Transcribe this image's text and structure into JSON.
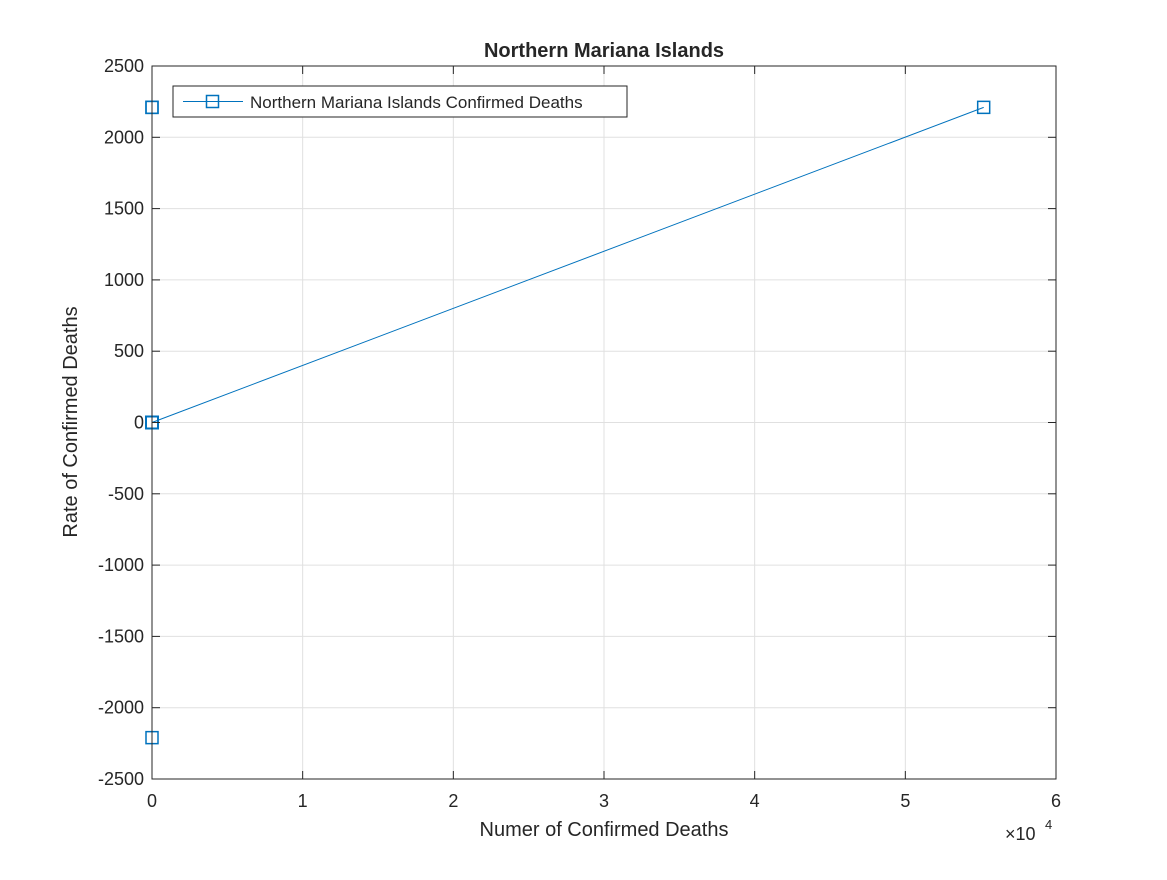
{
  "chart_data": {
    "type": "line",
    "title": "Northern Mariana Islands",
    "xlabel": "Numer of Confirmed Deaths",
    "ylabel": "Rate of Confirmed Deaths",
    "x_exponent_label": "×10",
    "x_exponent_power": "4",
    "xlim": [
      0,
      60000
    ],
    "ylim": [
      -2500,
      2500
    ],
    "xticks": [
      0,
      10000,
      20000,
      30000,
      40000,
      50000,
      60000
    ],
    "xtick_labels": [
      "0",
      "1",
      "2",
      "3",
      "4",
      "5",
      "6"
    ],
    "yticks": [
      -2500,
      -2000,
      -1500,
      -1000,
      -500,
      0,
      500,
      1000,
      1500,
      2000,
      2500
    ],
    "ytick_labels": [
      "-2500",
      "-2000",
      "-1500",
      "-1000",
      "-500",
      "0",
      "500",
      "1000",
      "1500",
      "2000",
      "2500"
    ],
    "grid": true,
    "legend_position": "top-left",
    "series": [
      {
        "name": "Northern Mariana Islands Confirmed Deaths",
        "color": "#0072bd",
        "marker": "square",
        "x": [
          0,
          0,
          0,
          0,
          0,
          55200,
          0,
          0,
          0,
          0,
          0,
          0,
          0,
          0,
          0,
          0,
          0,
          0,
          0,
          0,
          0
        ],
        "y": [
          2210,
          2210,
          -2210,
          0,
          0,
          2210,
          0,
          0,
          0,
          0,
          0,
          0,
          0,
          0,
          0,
          0,
          0,
          0,
          0,
          0,
          0
        ]
      }
    ]
  }
}
